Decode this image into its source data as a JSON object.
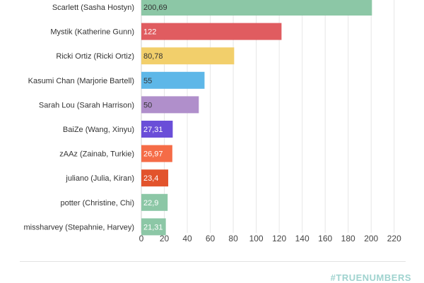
{
  "chart_data": {
    "type": "bar",
    "orientation": "horizontal",
    "title": "",
    "xlabel": "",
    "ylabel": "",
    "xlim": [
      0,
      230
    ],
    "xticks": [
      0,
      20,
      40,
      60,
      80,
      100,
      120,
      140,
      160,
      180,
      200,
      220
    ],
    "grid": true,
    "categories": [
      "Scarlett (Sasha Hostyn)",
      "Mystik (Katherine Gunn)",
      "Ricki Ortiz (Ricki Ortiz)",
      "Kasumi Chan (Marjorie Bartell)",
      "Sarah Lou (Sarah Harrison)",
      "BaiZe (Wang, Xinyu)",
      "zAAz (Zainab, Turkie)",
      "juliano (Julia, Kiran)",
      "potter (Christine, Chi)",
      "missharvey (Stepahnie, Harvey)"
    ],
    "values": [
      200.69,
      122,
      80.78,
      55,
      50,
      27.31,
      26.97,
      23.4,
      22.9,
      21.31
    ],
    "value_labels": [
      "200,69",
      "122",
      "80,78",
      "55",
      "50",
      "27,31",
      "26,97",
      "23,4",
      "22,9",
      "21,31"
    ],
    "colors": [
      "#8cc7a6",
      "#e05c60",
      "#f2cf6b",
      "#5eb7e8",
      "#b08fcb",
      "#6a4ed8",
      "#f56c47",
      "#e2532c",
      "#8cc7a6",
      "#8cc7a6"
    ],
    "label_colors": [
      "#333333",
      "#ffffff",
      "#333333",
      "#333333",
      "#333333",
      "#ffffff",
      "#ffffff",
      "#ffffff",
      "#ffffff",
      "#ffffff"
    ]
  },
  "footer": {
    "brand": "#TRUENUMBERS"
  }
}
